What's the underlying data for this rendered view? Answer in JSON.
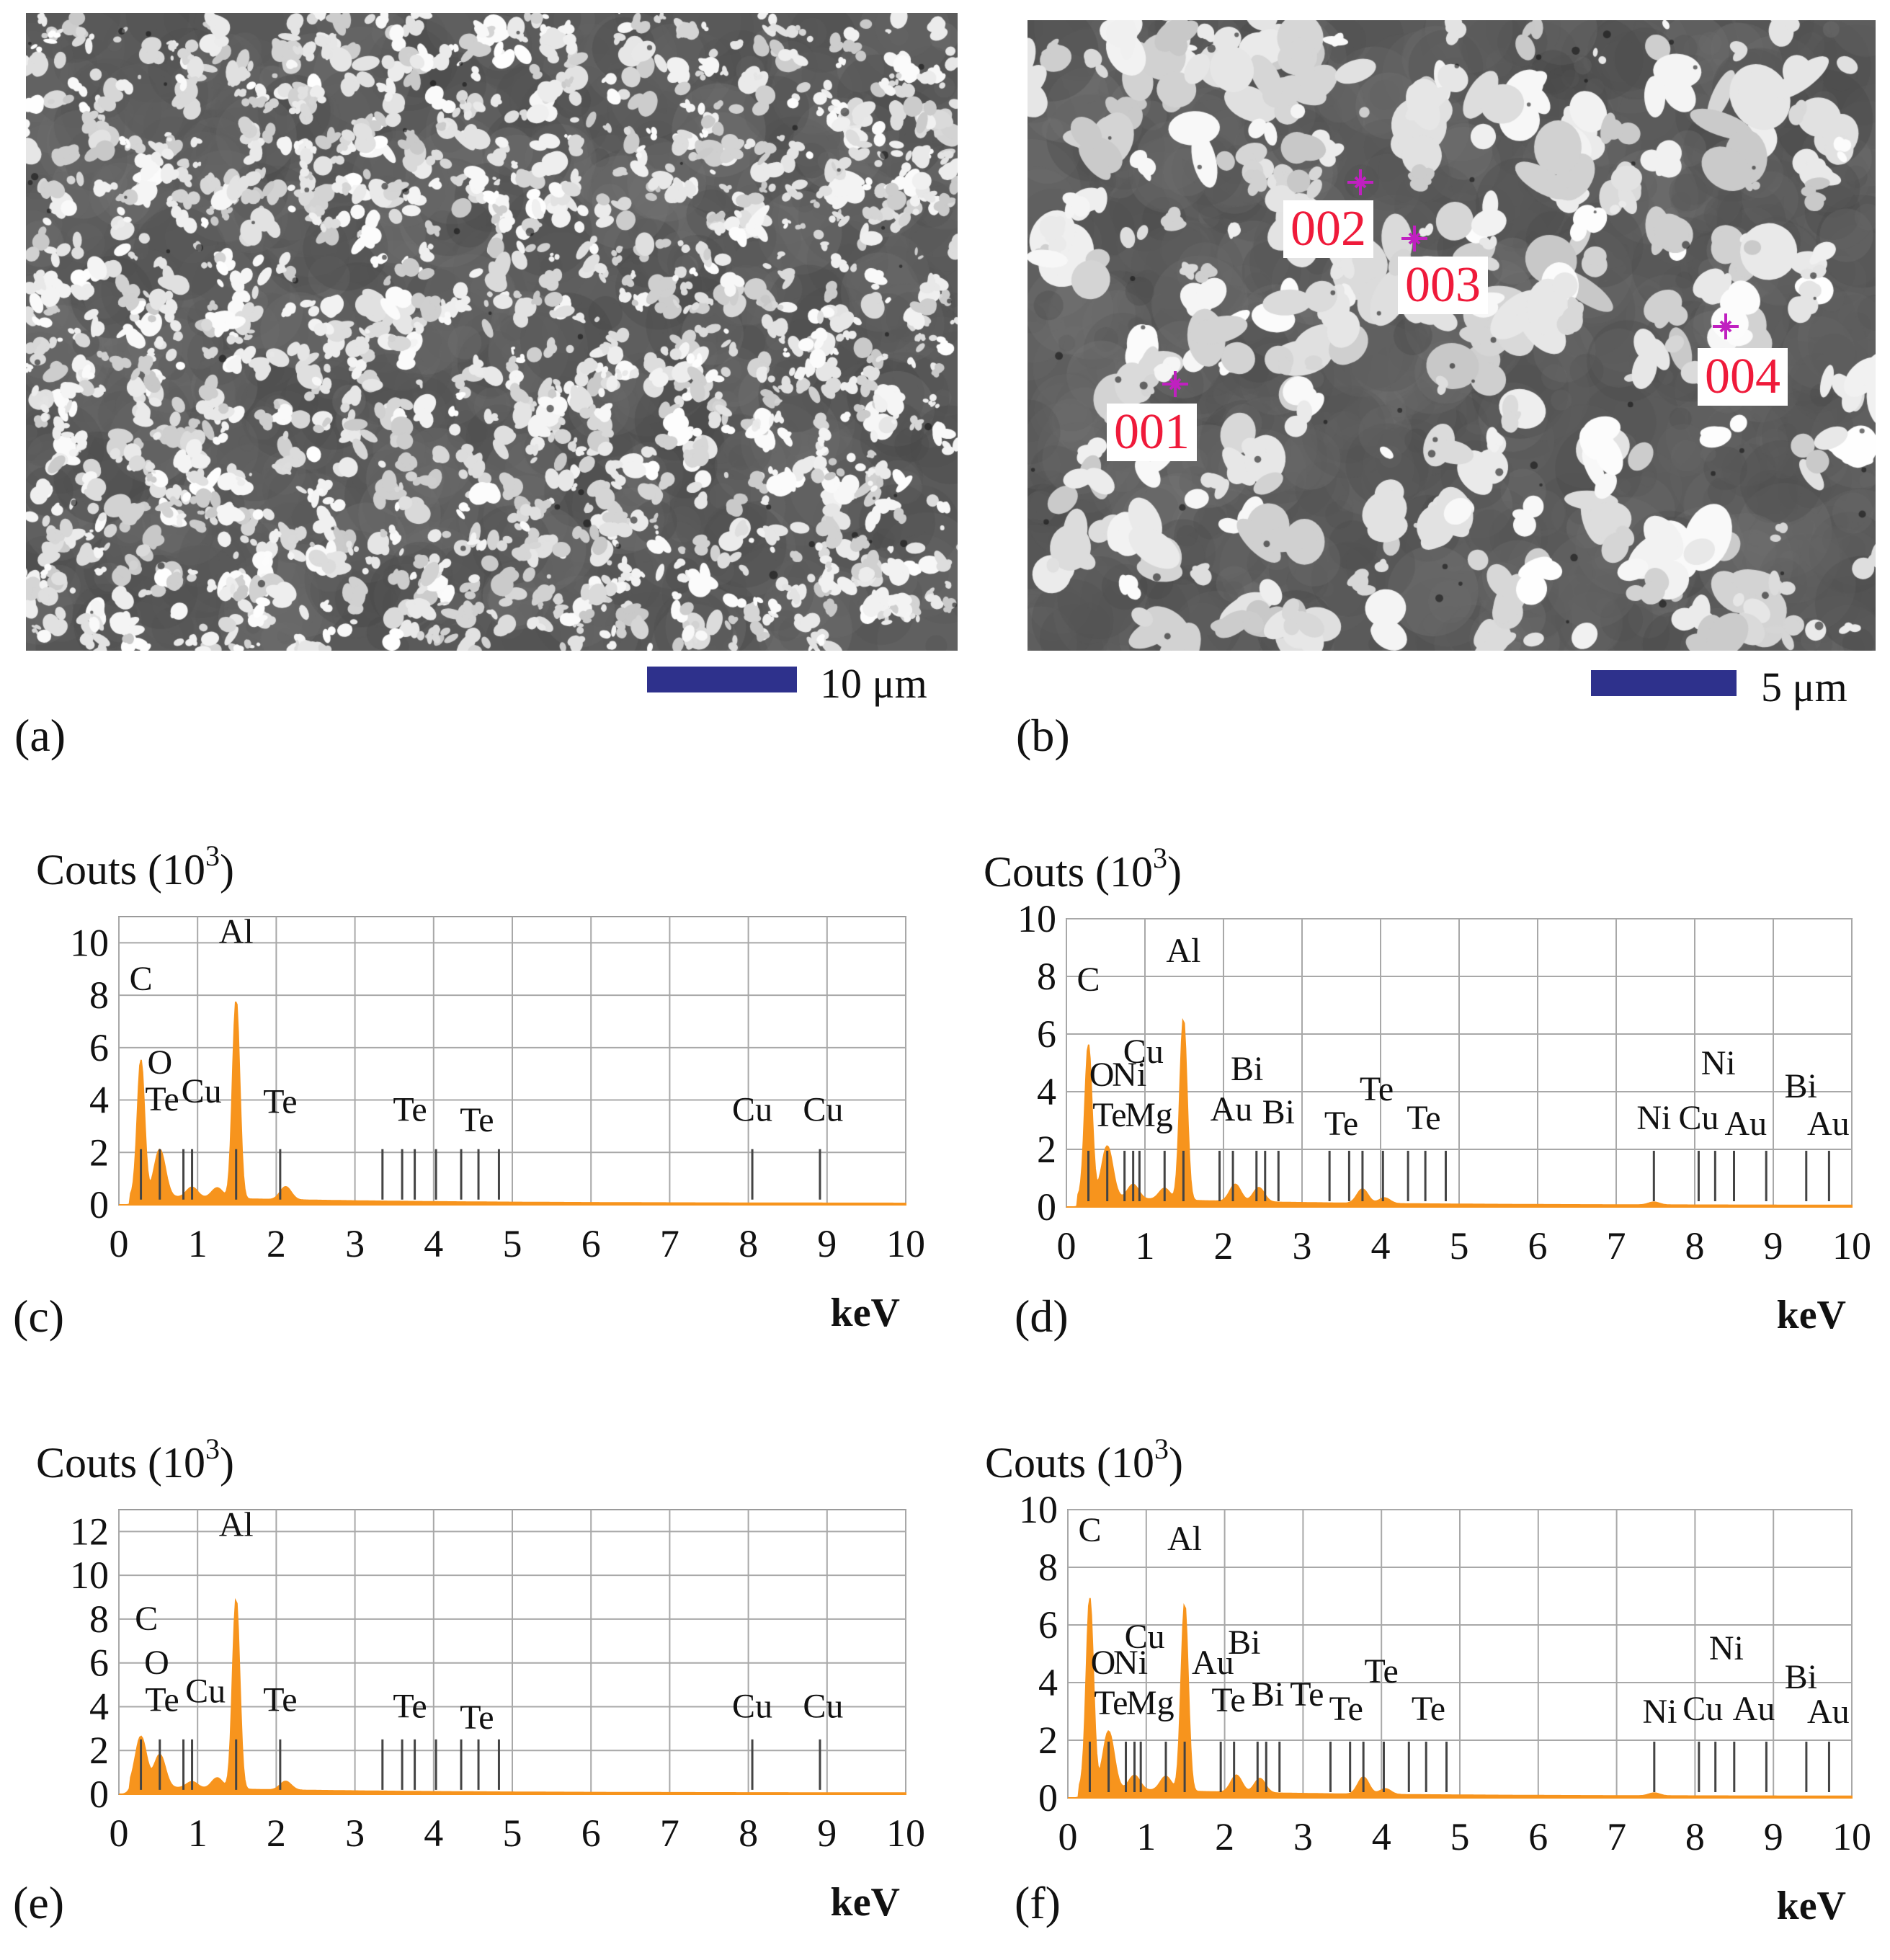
{
  "figure": {
    "panels": {
      "a": {
        "label": "(a)",
        "scale_label": "10 μm"
      },
      "b": {
        "label": "(b)",
        "scale_label": "5 μm",
        "points": [
          "001",
          "002",
          "003",
          "004"
        ]
      },
      "c": {
        "label": "(c)"
      },
      "d": {
        "label": "(d)"
      },
      "e": {
        "label": "(e)"
      },
      "f": {
        "label": "(f)"
      }
    }
  },
  "colors": {
    "spectrum": "#f7941d",
    "scalebar": "#2e318c",
    "point_label": "#ef1a3a",
    "marker": "#c020c0"
  },
  "chart_data": [
    {
      "panel": "c",
      "type": "area",
      "ylabel": "Couts (10^3)",
      "xlabel": "keV",
      "xlim": [
        0,
        10
      ],
      "ylim": [
        0,
        11
      ],
      "x_ticks": [
        0,
        1,
        2,
        3,
        4,
        5,
        6,
        7,
        8,
        9,
        10
      ],
      "y_ticks": [
        0,
        2,
        4,
        6,
        8,
        10
      ],
      "peaks": [
        {
          "x": 0.28,
          "y": 5.2
        },
        {
          "x": 0.52,
          "y": 1.8
        },
        {
          "x": 0.93,
          "y": 0.4
        },
        {
          "x": 1.25,
          "y": 0.4
        },
        {
          "x": 1.49,
          "y": 7.6
        },
        {
          "x": 2.12,
          "y": 0.5
        }
      ],
      "element_labels": [
        {
          "text": "C",
          "x": 0.28,
          "y": 8.2
        },
        {
          "text": "O",
          "x": 0.52,
          "y": 5.0
        },
        {
          "text": "Te",
          "x": 0.55,
          "y": 3.6
        },
        {
          "text": "Cu",
          "x": 1.05,
          "y": 3.9
        },
        {
          "text": "Al",
          "x": 1.49,
          "y": 10.0
        },
        {
          "text": "Te",
          "x": 2.05,
          "y": 3.5
        },
        {
          "text": "Te",
          "x": 3.7,
          "y": 3.2
        },
        {
          "text": "Te",
          "x": 4.55,
          "y": 2.8
        },
        {
          "text": "Cu",
          "x": 8.05,
          "y": 3.2
        },
        {
          "text": "Cu",
          "x": 8.95,
          "y": 3.2
        }
      ],
      "marker_lines": [
        0.28,
        0.52,
        0.82,
        0.93,
        1.49,
        2.05,
        3.35,
        3.6,
        3.76,
        4.03,
        4.35,
        4.57,
        4.83,
        8.05,
        8.91
      ]
    },
    {
      "panel": "d",
      "type": "area",
      "ylabel": "Couts (10^3)",
      "xlabel": "keV",
      "xlim": [
        0,
        10
      ],
      "ylim": [
        0,
        10
      ],
      "x_ticks": [
        0,
        1,
        2,
        3,
        4,
        5,
        6,
        7,
        8,
        9,
        10
      ],
      "y_ticks": [
        0,
        2,
        4,
        6,
        8,
        10
      ],
      "peaks": [
        {
          "x": 0.28,
          "y": 5.3
        },
        {
          "x": 0.52,
          "y": 1.8
        },
        {
          "x": 0.85,
          "y": 0.5
        },
        {
          "x": 1.25,
          "y": 0.4
        },
        {
          "x": 1.49,
          "y": 6.3
        },
        {
          "x": 2.15,
          "y": 0.6
        },
        {
          "x": 2.45,
          "y": 0.5
        },
        {
          "x": 3.77,
          "y": 0.5
        },
        {
          "x": 4.05,
          "y": 0.2
        },
        {
          "x": 7.48,
          "y": 0.1
        }
      ],
      "element_labels": [
        {
          "text": "C",
          "x": 0.28,
          "y": 7.5
        },
        {
          "text": "O",
          "x": 0.45,
          "y": 4.2
        },
        {
          "text": "Ni",
          "x": 0.8,
          "y": 4.2
        },
        {
          "text": "Cu",
          "x": 0.98,
          "y": 5.0
        },
        {
          "text": "Te",
          "x": 0.55,
          "y": 2.8
        },
        {
          "text": "Mg",
          "x": 1.05,
          "y": 2.8
        },
        {
          "text": "Al",
          "x": 1.49,
          "y": 8.5
        },
        {
          "text": "Au",
          "x": 2.1,
          "y": 3.0
        },
        {
          "text": "Bi",
          "x": 2.3,
          "y": 4.4
        },
        {
          "text": "Bi",
          "x": 2.7,
          "y": 2.9
        },
        {
          "text": "Te",
          "x": 3.5,
          "y": 2.5
        },
        {
          "text": "Te",
          "x": 3.95,
          "y": 3.7
        },
        {
          "text": "Te",
          "x": 4.55,
          "y": 2.7
        },
        {
          "text": "Ni",
          "x": 8.3,
          "y": 4.6
        },
        {
          "text": "Ni",
          "x": 7.48,
          "y": 2.7
        },
        {
          "text": "Cu",
          "x": 8.05,
          "y": 2.7
        },
        {
          "text": "Au",
          "x": 8.65,
          "y": 2.5
        },
        {
          "text": "Bi",
          "x": 9.35,
          "y": 3.8
        },
        {
          "text": "Au",
          "x": 9.7,
          "y": 2.5
        }
      ],
      "marker_lines": [
        0.28,
        0.52,
        0.74,
        0.85,
        0.93,
        1.25,
        1.49,
        1.95,
        2.12,
        2.42,
        2.53,
        2.7,
        3.35,
        3.6,
        3.77,
        4.03,
        4.35,
        4.57,
        4.83,
        7.48,
        8.05,
        8.26,
        8.5,
        8.91,
        9.42,
        9.71
      ]
    },
    {
      "panel": "e",
      "type": "area",
      "ylabel": "Couts (10^3)",
      "xlabel": "keV",
      "xlim": [
        0,
        10
      ],
      "ylim": [
        0,
        13
      ],
      "x_ticks": [
        0,
        1,
        2,
        3,
        4,
        5,
        6,
        7,
        8,
        9,
        10
      ],
      "y_ticks": [
        0,
        2,
        4,
        6,
        8,
        10,
        12
      ],
      "peaks": [
        {
          "x": 0.28,
          "y": 2.3
        },
        {
          "x": 0.52,
          "y": 1.5
        },
        {
          "x": 0.93,
          "y": 0.3
        },
        {
          "x": 1.25,
          "y": 0.5
        },
        {
          "x": 1.49,
          "y": 8.7
        },
        {
          "x": 2.12,
          "y": 0.4
        }
      ],
      "element_labels": [
        {
          "text": "C",
          "x": 0.35,
          "y": 7.5
        },
        {
          "text": "O",
          "x": 0.48,
          "y": 5.5
        },
        {
          "text": "Te",
          "x": 0.55,
          "y": 3.8
        },
        {
          "text": "Cu",
          "x": 1.1,
          "y": 4.2
        },
        {
          "text": "Al",
          "x": 1.49,
          "y": 11.8
        },
        {
          "text": "Te",
          "x": 2.05,
          "y": 3.8
        },
        {
          "text": "Te",
          "x": 3.7,
          "y": 3.5
        },
        {
          "text": "Te",
          "x": 4.55,
          "y": 3.0
        },
        {
          "text": "Cu",
          "x": 8.05,
          "y": 3.5
        },
        {
          "text": "Cu",
          "x": 8.95,
          "y": 3.5
        }
      ],
      "marker_lines": [
        0.28,
        0.52,
        0.82,
        0.93,
        1.49,
        2.05,
        3.35,
        3.6,
        3.76,
        4.03,
        4.35,
        4.57,
        4.83,
        8.05,
        8.91
      ]
    },
    {
      "panel": "f",
      "type": "area",
      "ylabel": "Couts (10^3)",
      "xlabel": "keV",
      "xlim": [
        0,
        10
      ],
      "ylim": [
        0,
        10
      ],
      "x_ticks": [
        0,
        1,
        2,
        3,
        4,
        5,
        6,
        7,
        8,
        9,
        10
      ],
      "y_ticks": [
        0,
        2,
        4,
        6,
        8,
        10
      ],
      "peaks": [
        {
          "x": 0.28,
          "y": 6.6
        },
        {
          "x": 0.52,
          "y": 2.0
        },
        {
          "x": 0.85,
          "y": 0.5
        },
        {
          "x": 1.25,
          "y": 0.5
        },
        {
          "x": 1.49,
          "y": 6.5
        },
        {
          "x": 2.15,
          "y": 0.6
        },
        {
          "x": 2.45,
          "y": 0.5
        },
        {
          "x": 3.77,
          "y": 0.6
        },
        {
          "x": 4.05,
          "y": 0.2
        },
        {
          "x": 7.48,
          "y": 0.1
        }
      ],
      "element_labels": [
        {
          "text": "C",
          "x": 0.28,
          "y": 8.9
        },
        {
          "text": "O",
          "x": 0.45,
          "y": 4.3
        },
        {
          "text": "Ni",
          "x": 0.8,
          "y": 4.3
        },
        {
          "text": "Cu",
          "x": 0.98,
          "y": 5.2
        },
        {
          "text": "Te",
          "x": 0.55,
          "y": 2.9
        },
        {
          "text": "Mg",
          "x": 1.05,
          "y": 2.9
        },
        {
          "text": "Al",
          "x": 1.49,
          "y": 8.6
        },
        {
          "text": "Au",
          "x": 1.85,
          "y": 4.3
        },
        {
          "text": "Bi",
          "x": 2.25,
          "y": 5.0
        },
        {
          "text": "Te",
          "x": 2.05,
          "y": 3.0
        },
        {
          "text": "Bi",
          "x": 2.55,
          "y": 3.2
        },
        {
          "text": "Te",
          "x": 3.05,
          "y": 3.2
        },
        {
          "text": "Te",
          "x": 3.55,
          "y": 2.7
        },
        {
          "text": "Te",
          "x": 4.0,
          "y": 4.0
        },
        {
          "text": "Te",
          "x": 4.6,
          "y": 2.7
        },
        {
          "text": "Ni",
          "x": 8.4,
          "y": 4.8
        },
        {
          "text": "Ni",
          "x": 7.55,
          "y": 2.6
        },
        {
          "text": "Cu",
          "x": 8.1,
          "y": 2.7
        },
        {
          "text": "Au",
          "x": 8.75,
          "y": 2.7
        },
        {
          "text": "Bi",
          "x": 9.35,
          "y": 3.8
        },
        {
          "text": "Au",
          "x": 9.7,
          "y": 2.6
        }
      ],
      "marker_lines": [
        0.28,
        0.52,
        0.74,
        0.85,
        0.93,
        1.25,
        1.49,
        1.95,
        2.12,
        2.42,
        2.53,
        2.7,
        3.35,
        3.6,
        3.77,
        4.03,
        4.35,
        4.57,
        4.83,
        7.48,
        8.05,
        8.26,
        8.5,
        8.91,
        9.42,
        9.71
      ]
    }
  ]
}
